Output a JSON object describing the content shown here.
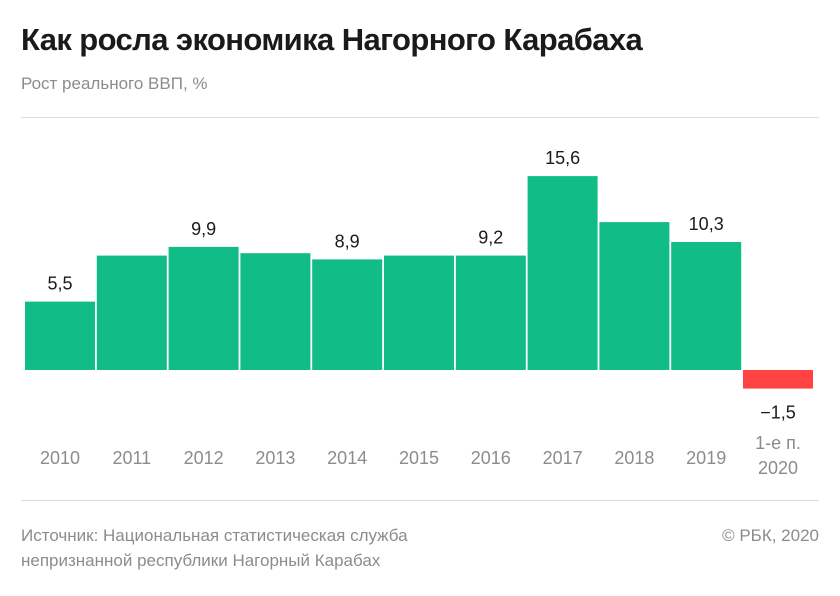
{
  "header": {
    "title": "Как росла экономика Нагорного Карабаха",
    "subtitle": "Рост реального ВВП, %"
  },
  "footer": {
    "source_line1": "Источник: Национальная статистическая служба",
    "source_line2": "непризнанной республики Нагорный Карабах",
    "copyright": "© РБК, 2020"
  },
  "colors": {
    "positive": "#12bc87",
    "negative": "#ff4343",
    "value_label": "#1a1a1a",
    "tick_label": "#8c8c8c"
  },
  "chart_data": {
    "type": "bar",
    "title": "Как росла экономика Нагорного Карабаха",
    "subtitle": "Рост реального ВВП, %",
    "xlabel": "",
    "ylabel": "Рост реального ВВП, %",
    "ylim": [
      -1.5,
      15.6
    ],
    "grid": false,
    "legend": "none",
    "categories": [
      "2010",
      "2011",
      "2012",
      "2013",
      "2014",
      "2015",
      "2016",
      "2017",
      "2018",
      "2019",
      "1-е п.\n2020"
    ],
    "values": [
      5.5,
      9.2,
      9.9,
      9.4,
      8.9,
      9.2,
      9.2,
      15.6,
      11.9,
      10.3,
      -1.5
    ],
    "data_labels": [
      "5,5",
      "",
      "9,9",
      "",
      "8,9",
      "",
      "9,2",
      "15,6",
      "",
      "10,3",
      "−1,5"
    ]
  }
}
